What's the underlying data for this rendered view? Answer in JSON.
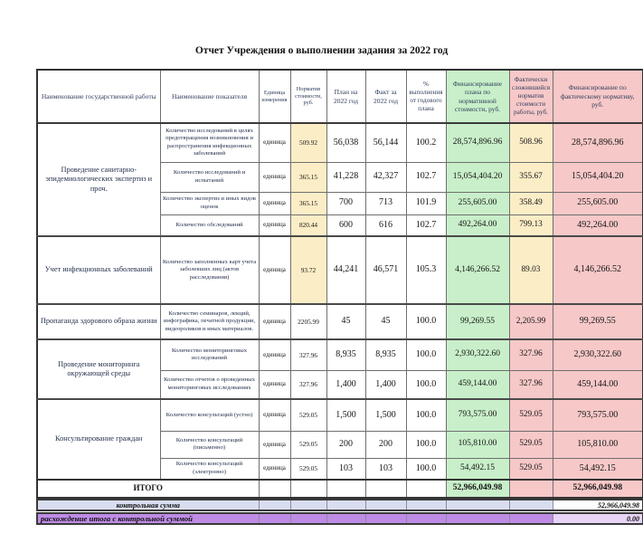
{
  "title": "Отчет Учреждения о выполнении задания за 2022 год",
  "colors": {
    "green": "#C8EFC9",
    "cream": "#FBEDC6",
    "pink": "#F7C8C8",
    "lavender": "#D9DDF0",
    "purple": "#BE8CE4",
    "purple-light": "#E6D3F5",
    "header-text": "#2E3D5C"
  },
  "table": {
    "headers": [
      {
        "label": "Наименование государственной работы",
        "fill": "none"
      },
      {
        "label": "Наименование показателя",
        "fill": "none"
      },
      {
        "label": "Единица измерения",
        "fill": "none"
      },
      {
        "label": "Норматив стоимости, руб.",
        "fill": "none"
      },
      {
        "label": "План на 2022 год",
        "fill": "none"
      },
      {
        "label": "Факт за 2022 год",
        "fill": "none"
      },
      {
        "label": "% выполнения от годового плана",
        "fill": "none"
      },
      {
        "label": "Финансирование плана по нормативной стоимости, руб.",
        "fill": "green"
      },
      {
        "label": "Фактически сложившийся норматив стоимости работы, руб.",
        "fill": "pink"
      },
      {
        "label": "Финансирование по фактическому нормативу, руб.",
        "fill": "pink"
      }
    ],
    "sections": [
      {
        "work": "Проведение санитарно-эпидемиологических экспертиз и проч.",
        "rows": [
          {
            "indicator": "Количество исследований в целях предотвращения возникновения и распространения инфекционных заболеваний",
            "unit": "единица",
            "norm": "509.92",
            "plan": "56,038",
            "fact": "56,144",
            "pct": "100.2",
            "fin_plan": "28,574,896.96",
            "fact_norm": "508.96",
            "fin_fact": "28,574,896.96",
            "warm": true
          },
          {
            "indicator": "Количество исследований и испытаний",
            "unit": "единица",
            "norm": "365.15",
            "plan": "41,228",
            "fact": "42,327",
            "pct": "102.7",
            "fin_plan": "15,054,404.20",
            "fact_norm": "355.67",
            "fin_fact": "15,054,404.20",
            "warm": true
          },
          {
            "indicator": "Количество экспертиз и иных видов оценок",
            "unit": "единица",
            "norm": "365.15",
            "plan": "700",
            "fact": "713",
            "pct": "101.9",
            "fin_plan": "255,605.00",
            "fact_norm": "358.49",
            "fin_fact": "255,605.00",
            "warm": true
          },
          {
            "indicator": "Количество обследований",
            "unit": "единица",
            "norm": "820.44",
            "plan": "600",
            "fact": "616",
            "pct": "102.7",
            "fin_plan": "492,264.00",
            "fact_norm": "799.13",
            "fin_fact": "492,264.00",
            "warm": true
          }
        ]
      },
      {
        "work": "Учет инфекционных заболеваний",
        "rows": [
          {
            "indicator": "Количество заполненных карт учета заболевших лиц (актов расследования)",
            "unit": "единица",
            "norm": "93.72",
            "plan": "44,241",
            "fact": "46,571",
            "pct": "105.3",
            "fin_plan": "4,146,266.52",
            "fact_norm": "89.03",
            "fin_fact": "4,146,266.52",
            "warm": true
          }
        ]
      },
      {
        "work": "Пропаганда здорового образа жизни",
        "rows": [
          {
            "indicator": "Количество семинаров, лекций, инфографика, печатной продукции, видеороликов и иных материалов.",
            "unit": "единица",
            "norm": "2205.99",
            "plan": "45",
            "fact": "45",
            "pct": "100.0",
            "fin_plan": "99,269.55",
            "fact_norm": "2,205.99",
            "fin_fact": "99,269.55",
            "warm": false
          }
        ]
      },
      {
        "work": "Проведение мониторинга окружающей среды",
        "rows": [
          {
            "indicator": "Количество мониторинговых исследований",
            "unit": "единица",
            "norm": "327.96",
            "plan": "8,935",
            "fact": "8,935",
            "pct": "100.0",
            "fin_plan": "2,930,322.60",
            "fact_norm": "327.96",
            "fin_fact": "2,930,322.60",
            "warm": false
          },
          {
            "indicator": "Количество отчетов о проведенных мониторинговых исследованиях",
            "unit": "единица",
            "norm": "327.96",
            "plan": "1,400",
            "fact": "1,400",
            "pct": "100.0",
            "fin_plan": "459,144.00",
            "fact_norm": "327.96",
            "fin_fact": "459,144.00",
            "warm": false
          }
        ]
      },
      {
        "work": "Консультирование граждан",
        "rows": [
          {
            "indicator": "Количество консультаций (устно)",
            "unit": "единица",
            "norm": "529.05",
            "plan": "1,500",
            "fact": "1,500",
            "pct": "100.0",
            "fin_plan": "793,575.00",
            "fact_norm": "529.05",
            "fin_fact": "793,575.00",
            "warm": false
          },
          {
            "indicator": "Количество консультаций (письменно)",
            "unit": "единица",
            "norm": "529.05",
            "plan": "200",
            "fact": "200",
            "pct": "100.0",
            "fin_plan": "105,810.00",
            "fact_norm": "529.05",
            "fin_fact": "105,810.00",
            "warm": false
          },
          {
            "indicator": "Количество консультаций (электронно)",
            "unit": "единица",
            "norm": "529.05",
            "plan": "103",
            "fact": "103",
            "pct": "100.0",
            "fin_plan": "54,492.15",
            "fact_norm": "529.05",
            "fin_fact": "54,492.15",
            "warm": false
          }
        ]
      }
    ],
    "total": {
      "label": "ИТОГО",
      "fin_plan": "52,966,049.98",
      "fin_fact": "52,966,049.98"
    },
    "control_sum": {
      "label": "контрольная сумма",
      "value": "52,966,049.98"
    },
    "discrepancy": {
      "label": "расхождение итога с контрольной суммой",
      "value": "0.00"
    }
  }
}
